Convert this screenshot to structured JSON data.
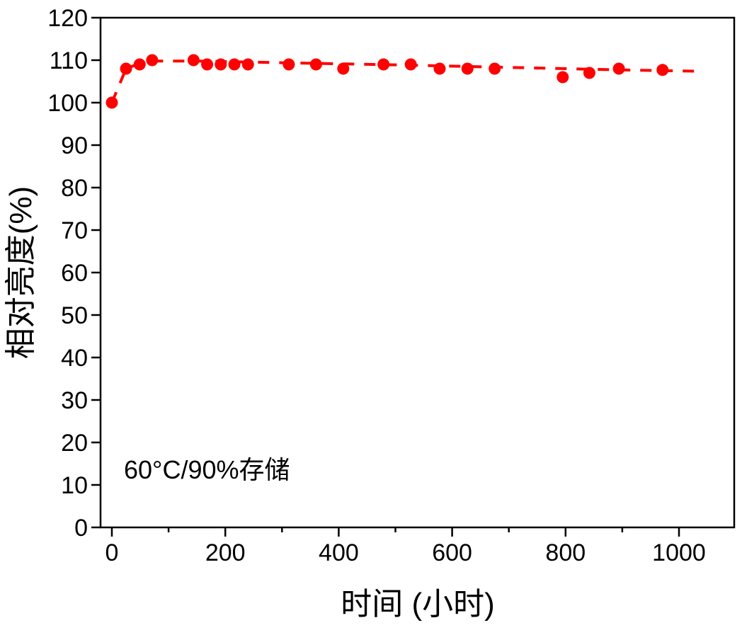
{
  "chart_data": {
    "type": "scatter",
    "title": "",
    "xlabel": "时间 (小时)",
    "ylabel": "相对亮度(%)",
    "annotation": "60°C/90%存储",
    "xlim": [
      -20,
      1100
    ],
    "ylim": [
      0,
      120
    ],
    "xticks": [
      0,
      200,
      400,
      600,
      800,
      1000
    ],
    "yticks": [
      0,
      10,
      20,
      30,
      40,
      50,
      60,
      70,
      80,
      90,
      100,
      110,
      120
    ],
    "grid": false,
    "color": "#ff0000",
    "series": [
      {
        "name": "data",
        "x": [
          0,
          25,
          49,
          71,
          144,
          168,
          192,
          216,
          240,
          312,
          360,
          408,
          479,
          527,
          578,
          627,
          675,
          795,
          842,
          894,
          971
        ],
        "y": [
          100,
          108,
          109,
          110,
          110,
          109,
          109,
          109,
          109,
          109,
          109,
          108,
          109,
          109,
          108,
          108,
          108,
          106,
          107,
          108,
          107.7
        ]
      },
      {
        "name": "fit",
        "style": "dashed",
        "x": [
          0,
          25,
          50,
          80,
          150,
          300,
          500,
          700,
          900,
          1035
        ],
        "y": [
          100,
          108,
          109.3,
          109.8,
          109.8,
          109.4,
          108.9,
          108.3,
          107.7,
          107.4
        ]
      }
    ]
  }
}
